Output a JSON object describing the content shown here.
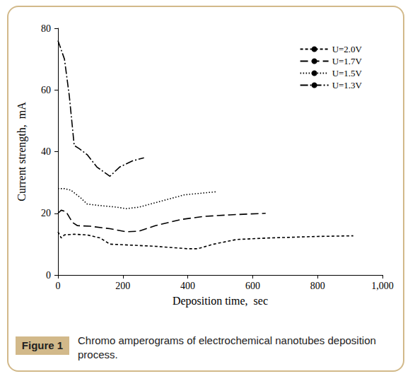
{
  "chart_data": {
    "type": "line",
    "x_label": "Deposition time,  sec",
    "y_label": "Current strength,  mA",
    "xlim": [
      0,
      1000
    ],
    "xticks": [
      0,
      200,
      400,
      600,
      800,
      1000
    ],
    "ylim": [
      0,
      80
    ],
    "yticks": [
      0,
      20,
      40,
      60,
      80
    ],
    "grid": false,
    "legend": "upper right",
    "series": [
      {
        "name": "U=2.0V",
        "color": "#000000",
        "line_style": "dashed",
        "x": [
          0,
          10,
          20,
          50,
          90,
          130,
          160,
          200,
          300,
          400,
          430,
          480,
          550,
          650,
          800,
          910
        ],
        "values": [
          14,
          12,
          13,
          13.2,
          13,
          12,
          10,
          9.8,
          9.3,
          8.5,
          8.5,
          10,
          11.5,
          12,
          12.5,
          12.7
        ]
      },
      {
        "name": "U=1.7V",
        "color": "#000000",
        "line_style": "longdash",
        "x": [
          0,
          10,
          25,
          45,
          60,
          100,
          160,
          210,
          250,
          300,
          380,
          450,
          530,
          640
        ],
        "values": [
          20,
          21,
          20.5,
          17,
          16,
          15.8,
          15,
          14,
          14.2,
          16,
          18,
          19,
          19.5,
          20
        ]
      },
      {
        "name": "U=1.5V",
        "color": "#000000",
        "line_style": "dotted",
        "x": [
          0,
          20,
          40,
          70,
          90,
          130,
          180,
          210,
          250,
          320,
          390,
          490
        ],
        "values": [
          28,
          28,
          27.5,
          25,
          23,
          22.5,
          22,
          21.5,
          22,
          24,
          26,
          27
        ]
      },
      {
        "name": "U=1.3V",
        "color": "#000000",
        "line_style": "dashdot",
        "x": [
          0,
          10,
          20,
          35,
          50,
          65,
          90,
          120,
          160,
          190,
          230,
          265
        ],
        "values": [
          76,
          73,
          70,
          58,
          42,
          41,
          39,
          35,
          32,
          35,
          37,
          38
        ]
      }
    ]
  },
  "caption": {
    "label": "Figure 1",
    "text": "Chromo amperograms of electrochemical nanotubes deposition process."
  }
}
